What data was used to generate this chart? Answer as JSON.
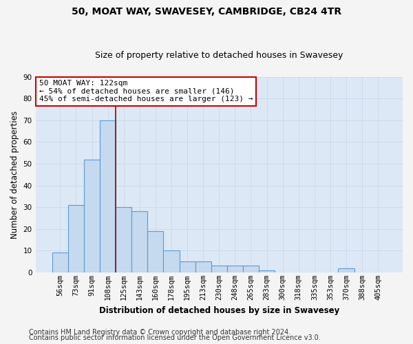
{
  "title": "50, MOAT WAY, SWAVESEY, CAMBRIDGE, CB24 4TR",
  "subtitle": "Size of property relative to detached houses in Swavesey",
  "xlabel": "Distribution of detached houses by size in Swavesey",
  "ylabel": "Number of detached properties",
  "bin_labels": [
    "56sqm",
    "73sqm",
    "91sqm",
    "108sqm",
    "125sqm",
    "143sqm",
    "160sqm",
    "178sqm",
    "195sqm",
    "213sqm",
    "230sqm",
    "248sqm",
    "265sqm",
    "283sqm",
    "300sqm",
    "318sqm",
    "335sqm",
    "353sqm",
    "370sqm",
    "388sqm",
    "405sqm"
  ],
  "bar_values": [
    9,
    31,
    52,
    70,
    30,
    28,
    19,
    10,
    5,
    5,
    3,
    3,
    3,
    1,
    0,
    0,
    0,
    0,
    2,
    0,
    0
  ],
  "bar_color": "#c5d9ef",
  "bar_edge_color": "#5b9bd5",
  "ylim": [
    0,
    90
  ],
  "yticks": [
    0,
    10,
    20,
    30,
    40,
    50,
    60,
    70,
    80,
    90
  ],
  "red_line_x": 3.5,
  "annotation_text": "50 MOAT WAY: 122sqm\n← 54% of detached houses are smaller (146)\n45% of semi-detached houses are larger (123) →",
  "footer_line1": "Contains HM Land Registry data © Crown copyright and database right 2024.",
  "footer_line2": "Contains public sector information licensed under the Open Government Licence v3.0.",
  "fig_facecolor": "#f4f4f4",
  "ax_facecolor": "#dce8f5",
  "grid_color": "#c8d8e8",
  "title_fontsize": 10,
  "subtitle_fontsize": 9,
  "axis_label_fontsize": 8.5,
  "tick_fontsize": 7.5,
  "annotation_fontsize": 8,
  "footer_fontsize": 7
}
